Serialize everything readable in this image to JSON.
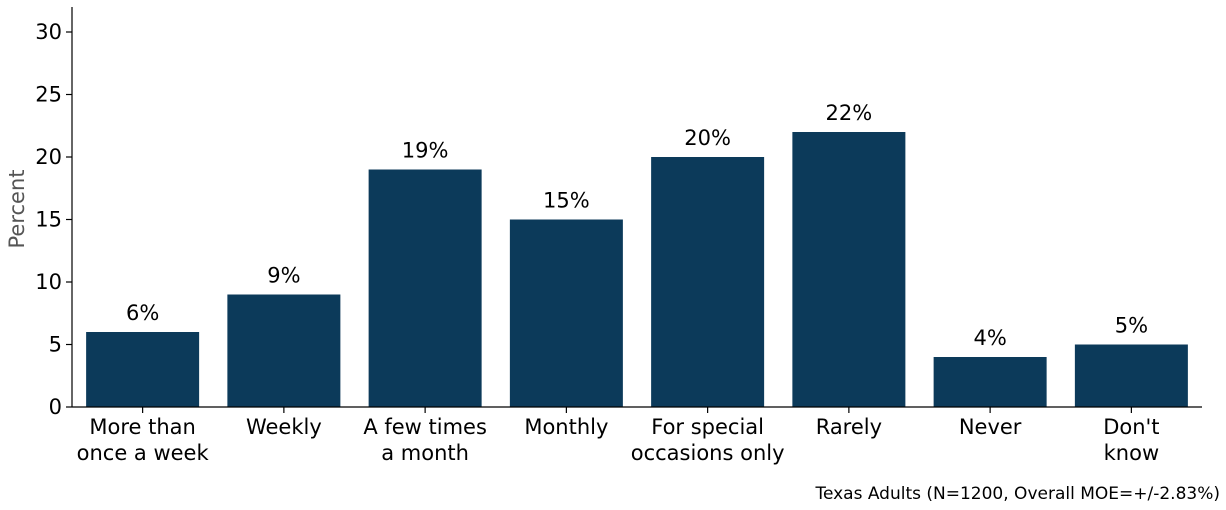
{
  "chart_data": {
    "type": "bar",
    "categories": [
      [
        "More than",
        "once a week"
      ],
      [
        "Weekly"
      ],
      [
        "A few times",
        "a month"
      ],
      [
        "Monthly"
      ],
      [
        "For special",
        "occasions only"
      ],
      [
        "Rarely"
      ],
      [
        "Never"
      ],
      [
        "Don't",
        "know"
      ]
    ],
    "values": [
      6,
      9,
      19,
      15,
      20,
      22,
      4,
      5
    ],
    "data_labels": [
      "6%",
      "9%",
      "19%",
      "15%",
      "20%",
      "22%",
      "4%",
      "5%"
    ],
    "ylabel": "Percent",
    "ylim": [
      0,
      32
    ],
    "yticks": [
      0,
      5,
      10,
      15,
      20,
      25,
      30
    ],
    "bar_color": "#0c3a5a",
    "grid": false
  },
  "footnote": "Texas Adults (N=1200, Overall MOE=+/-2.83%)"
}
